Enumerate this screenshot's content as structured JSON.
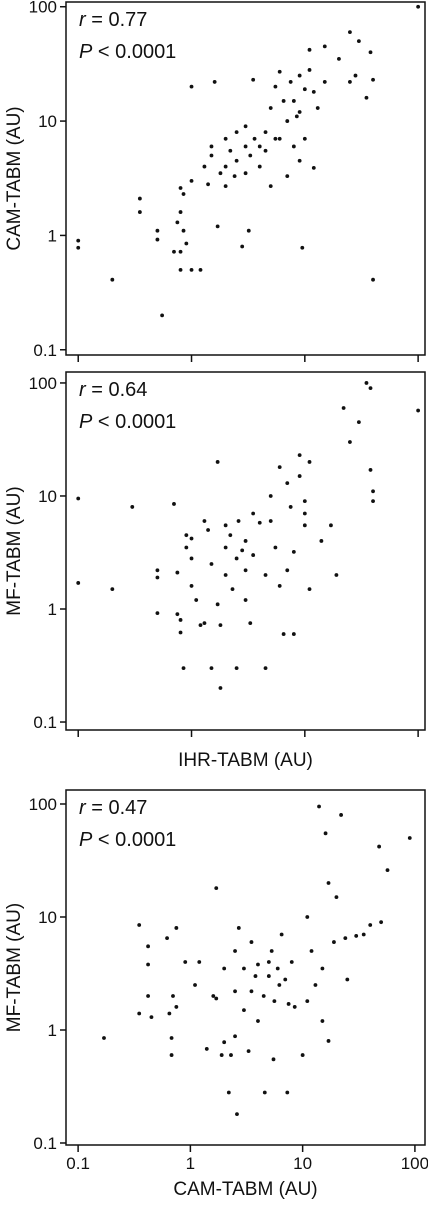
{
  "chart_data": [
    {
      "type": "scatter",
      "y_label": "CAM-TABM (AU)",
      "annotations": [
        "r = 0.77",
        "P < 0.0001"
      ],
      "log_x": true,
      "log_y": true,
      "xlim": [
        0.078,
        115
      ],
      "ylim": [
        0.09,
        110
      ],
      "xticks": [
        0.1,
        1,
        10,
        100
      ],
      "xtick_labels": false,
      "yticks": [
        0.1,
        1,
        10,
        100
      ],
      "color": "#111111",
      "x": [
        0.1,
        0.1,
        0.2,
        0.35,
        0.35,
        0.5,
        0.5,
        0.55,
        0.7,
        0.75,
        0.8,
        0.8,
        0.8,
        0.8,
        0.85,
        0.85,
        0.9,
        1,
        1,
        1,
        1.2,
        1.3,
        1.4,
        1.5,
        1.5,
        1.6,
        1.7,
        1.8,
        2,
        2,
        2,
        2.2,
        2.4,
        2.5,
        2.5,
        2.8,
        3,
        3,
        3,
        3.2,
        3.3,
        3.5,
        3.6,
        4,
        4,
        4.5,
        4.5,
        5,
        5,
        5.5,
        5.5,
        6,
        6,
        6.5,
        7,
        7,
        7.5,
        8,
        8,
        8.5,
        9,
        9,
        9,
        9.5,
        10,
        10,
        11,
        11,
        12,
        12,
        13,
        15,
        15,
        20,
        25,
        25,
        28,
        30,
        35,
        38,
        40,
        40,
        100
      ],
      "values": [
        0.9,
        0.78,
        0.41,
        2.1,
        1.6,
        1.1,
        0.92,
        0.2,
        0.72,
        1.3,
        2.6,
        1.6,
        0.72,
        0.5,
        2.3,
        1.1,
        0.85,
        20,
        3,
        0.5,
        0.5,
        4,
        2.8,
        6,
        5,
        22,
        1.2,
        3.5,
        4,
        7,
        2.7,
        5.5,
        3.3,
        4.5,
        8,
        0.8,
        6,
        3.5,
        9,
        1.1,
        5,
        23,
        7,
        6,
        4,
        8,
        5.5,
        13,
        2.7,
        20,
        7,
        7,
        27,
        15,
        10,
        3.3,
        22,
        15,
        6,
        11,
        25,
        12,
        4.5,
        0.78,
        19,
        7,
        42,
        28,
        18,
        3.9,
        13,
        45,
        22,
        35,
        60,
        22,
        25,
        50,
        16,
        40,
        23,
        0.41,
        100
      ]
    },
    {
      "type": "scatter",
      "x_label": "IHR-TABM (AU)",
      "y_label": "MF-TABM (AU)",
      "annotations": [
        "r = 0.64",
        "P < 0.0001"
      ],
      "log_x": true,
      "log_y": true,
      "xlim": [
        0.078,
        115
      ],
      "ylim": [
        0.085,
        125
      ],
      "xticks": [
        0.1,
        1,
        10,
        100
      ],
      "xtick_labels": false,
      "yticks": [
        0.1,
        1,
        10,
        100
      ],
      "color": "#111111",
      "x": [
        0.1,
        0.1,
        0.2,
        0.3,
        0.5,
        0.5,
        0.5,
        0.7,
        0.75,
        0.75,
        0.8,
        0.8,
        0.85,
        0.9,
        0.9,
        1,
        1,
        1,
        1.1,
        1.2,
        1.3,
        1.3,
        1.4,
        1.5,
        1.5,
        1.7,
        1.7,
        1.8,
        1.8,
        2,
        2,
        2,
        2.2,
        2.3,
        2.5,
        2.5,
        2.6,
        2.8,
        3,
        3,
        3,
        3.3,
        3.5,
        3.5,
        4,
        4.5,
        4.5,
        5,
        5,
        5.5,
        6,
        6,
        6.5,
        7,
        7,
        7.5,
        8,
        8,
        9,
        9,
        10,
        10,
        10,
        11,
        11,
        14,
        17,
        19,
        22,
        25,
        30,
        35,
        38,
        38,
        40,
        40,
        100
      ],
      "values": [
        9.5,
        1.7,
        1.5,
        8,
        2.2,
        1.9,
        0.92,
        8.5,
        2.1,
        0.9,
        0.62,
        0.8,
        0.3,
        4.5,
        3.5,
        1.6,
        2.8,
        4.2,
        1.2,
        0.72,
        6,
        0.75,
        5,
        2.5,
        0.3,
        20,
        1.1,
        0.2,
        0.72,
        5.5,
        3.5,
        2,
        4.5,
        1.5,
        2.8,
        0.3,
        6,
        3.3,
        4,
        2.2,
        1.2,
        0.75,
        7,
        3,
        5.8,
        0.3,
        2,
        6,
        10,
        3.5,
        18,
        1.6,
        0.6,
        13,
        2.2,
        8,
        3.2,
        0.6,
        23,
        15,
        5.5,
        7,
        9,
        20,
        1.5,
        4,
        5.5,
        2,
        60,
        30,
        45,
        100,
        90,
        17,
        11,
        9,
        57
      ]
    },
    {
      "type": "scatter",
      "x_label": "CAM-TABM (AU)",
      "y_label": "MF-TABM (AU)",
      "annotations": [
        "r = 0.47",
        "P < 0.0001"
      ],
      "log_x": true,
      "log_y": true,
      "xlim": [
        0.078,
        123
      ],
      "ylim": [
        0.096,
        133
      ],
      "xticks": [
        0.1,
        1,
        10,
        100
      ],
      "xtick_labels": true,
      "yticks": [
        0.1,
        1,
        10,
        100
      ],
      "color": "#111111",
      "x": [
        0.17,
        0.35,
        0.35,
        0.42,
        0.42,
        0.42,
        0.45,
        0.62,
        0.65,
        0.68,
        0.68,
        0.7,
        0.75,
        0.75,
        0.9,
        1.1,
        1.2,
        1.4,
        1.6,
        1.7,
        1.7,
        1.9,
        2,
        2,
        2.2,
        2.3,
        2.5,
        2.5,
        2.5,
        2.6,
        2.7,
        3,
        3,
        3.3,
        3.5,
        3.5,
        3.8,
        4,
        4,
        4.5,
        4.6,
        5,
        5,
        5.3,
        5.5,
        5.6,
        6,
        6.2,
        6.5,
        7,
        7.3,
        7.5,
        8,
        8.5,
        10,
        11,
        11,
        12,
        13,
        14,
        15,
        15,
        16,
        17,
        17,
        19,
        20,
        22,
        24,
        25,
        30,
        35,
        40,
        48,
        50,
        57,
        90
      ],
      "values": [
        0.85,
        8.5,
        1.4,
        5.5,
        3.8,
        2,
        1.3,
        6.5,
        1.4,
        0.85,
        0.6,
        2,
        8,
        1.6,
        4,
        2.5,
        4,
        0.68,
        2,
        18,
        1.9,
        0.6,
        3.5,
        0.78,
        0.28,
        0.6,
        5,
        2.2,
        0.88,
        0.18,
        8,
        3.5,
        1.5,
        0.65,
        2.2,
        6,
        3,
        3.8,
        1.2,
        2,
        0.28,
        4,
        3,
        5,
        0.55,
        1.8,
        3.5,
        2.5,
        7,
        2.8,
        0.28,
        1.7,
        4,
        1.6,
        0.6,
        1.8,
        10,
        5,
        2.5,
        95,
        1.2,
        3.5,
        55,
        20,
        0.8,
        6,
        15,
        80,
        6.5,
        2.8,
        6.8,
        7,
        8.5,
        42,
        9,
        26,
        50
      ]
    }
  ]
}
